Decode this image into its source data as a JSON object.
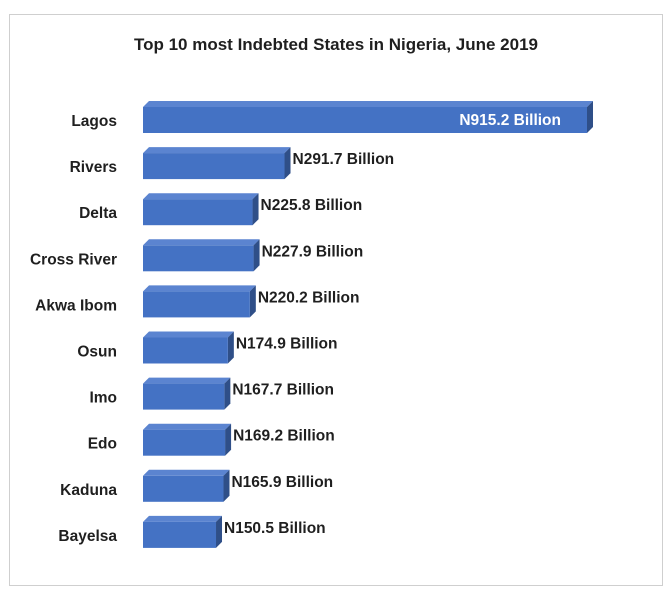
{
  "chart_data": {
    "type": "bar",
    "orientation": "horizontal",
    "title": "Top 10 most Indebted States in Nigeria, June 2019",
    "xlabel": "",
    "ylabel": "",
    "categories": [
      "Lagos",
      "Rivers",
      "Delta",
      "Cross River",
      "Akwa Ibom",
      "Osun",
      "Imo",
      "Edo",
      "Kaduna",
      "Bayelsa"
    ],
    "values": [
      915.2,
      291.7,
      225.8,
      227.9,
      220.2,
      174.9,
      167.7,
      169.2,
      165.9,
      150.5
    ],
    "data_labels": [
      "N915.2 Billion",
      "N291.7 Billion",
      "N225.8 Billion",
      "N227.9 Billion",
      "N220.2 Billion",
      "N174.9 Billion",
      "N167.7 Billion",
      "N169.2 Billion",
      "N165.9 Billion",
      "N150.5 Billion"
    ],
    "unit": "Billion",
    "xlim": [
      0,
      915.2
    ],
    "grid": false,
    "legend": "none",
    "bar_color": "#4472c4",
    "bar_side_color": "#2f4f88",
    "bar_top_color": "#5b84d0"
  }
}
